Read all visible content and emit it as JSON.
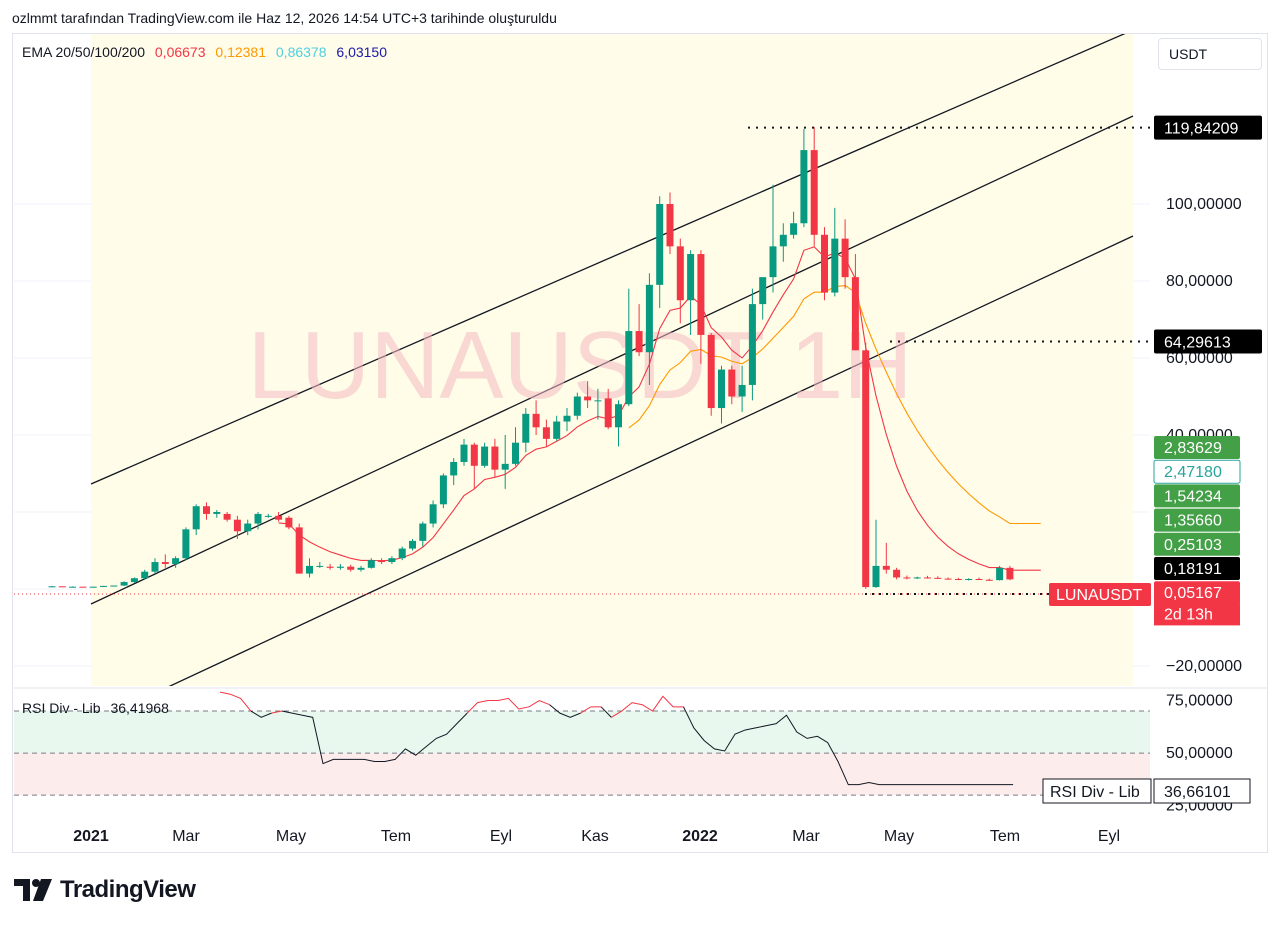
{
  "caption": "ozlmmt tarafından TradingView.com ile Haz 12, 2026 14:54 UTC+3 tarihinde oluşturuldu",
  "watermark": "LUNAUSDT 1H",
  "currency": "USDT",
  "ema_legend": {
    "label": "EMA 20/50/100/200",
    "values": [
      {
        "text": "0,06673",
        "color": "#f23645"
      },
      {
        "text": "0,12381",
        "color": "#ff9800"
      },
      {
        "text": "0,86378",
        "color": "#4dd0e1"
      },
      {
        "text": "6,03150",
        "color": "#1a1aa6"
      }
    ]
  },
  "rsi_legend": {
    "label": "RSI Div - Lib",
    "value": "36,41968"
  },
  "brand": "TradingView",
  "chart_data": {
    "type": "candlestick",
    "symbol": "LUNAUSDT",
    "price_axis": {
      "ticks": [
        {
          "value": 100,
          "label": "100,00000"
        },
        {
          "value": 80,
          "label": "80,00000"
        },
        {
          "value": 60,
          "label": "60,00000"
        },
        {
          "value": 40,
          "label": "40,00000"
        },
        {
          "value": -20,
          "label": "−20,00000"
        }
      ],
      "range": [
        -25,
        130
      ]
    },
    "price_labels": [
      {
        "value": 119.84209,
        "text": "119,84209",
        "bg": "#000000",
        "fg": "#ffffff"
      },
      {
        "value": 64.29613,
        "text": "64,29613",
        "bg": "#000000",
        "fg": "#ffffff"
      }
    ],
    "stacked_labels": [
      {
        "text": "2,83629",
        "bg": "#43a047",
        "fg": "#ffffff",
        "border": ""
      },
      {
        "text": "2,47180",
        "bg": "#ffffff",
        "fg": "#26a69a",
        "border": "#26a69a"
      },
      {
        "text": "1,54234",
        "bg": "#43a047",
        "fg": "#ffffff",
        "border": ""
      },
      {
        "text": "1,35660",
        "bg": "#43a047",
        "fg": "#ffffff",
        "border": ""
      },
      {
        "text": "0,25103",
        "bg": "#43a047",
        "fg": "#ffffff",
        "border": ""
      },
      {
        "text": "0,18191",
        "bg": "#000000",
        "fg": "#ffffff",
        "border": ""
      },
      {
        "text": "0,05167",
        "bg": "#f23645",
        "fg": "#ffffff",
        "border": ""
      }
    ],
    "countdown": "2d 13h",
    "symbol_tag": "LUNAUSDT",
    "time_axis": [
      {
        "label": "2021",
        "bold": true
      },
      {
        "label": "Mar",
        "bold": false
      },
      {
        "label": "May",
        "bold": false
      },
      {
        "label": "Tem",
        "bold": false
      },
      {
        "label": "Eyl",
        "bold": false
      },
      {
        "label": "Kas",
        "bold": false
      },
      {
        "label": "2022",
        "bold": true
      },
      {
        "label": "Mar",
        "bold": false
      },
      {
        "label": "May",
        "bold": false
      },
      {
        "label": "Tem",
        "bold": false
      },
      {
        "label": "Eyl",
        "bold": false
      }
    ],
    "candles": [
      [
        0.7,
        0.8,
        0.6,
        0.7
      ],
      [
        0.7,
        0.7,
        0.6,
        0.6
      ],
      [
        0.6,
        0.7,
        0.5,
        0.6
      ],
      [
        0.6,
        0.6,
        0.5,
        0.5
      ],
      [
        0.5,
        0.6,
        0.5,
        0.6
      ],
      [
        0.6,
        0.8,
        0.6,
        0.8
      ],
      [
        0.8,
        0.9,
        0.7,
        0.9
      ],
      [
        0.9,
        2.0,
        0.8,
        1.8
      ],
      [
        1.8,
        3.0,
        1.6,
        2.8
      ],
      [
        2.8,
        5.0,
        2.5,
        4.5
      ],
      [
        4.5,
        8.0,
        4.0,
        7.0
      ],
      [
        7.0,
        9.0,
        5.5,
        6.5
      ],
      [
        6.5,
        8.5,
        5.5,
        8.0
      ],
      [
        8.0,
        16.0,
        7.5,
        15.5
      ],
      [
        15.5,
        22.0,
        14.0,
        21.5
      ],
      [
        21.5,
        22.5,
        18.0,
        19.5
      ],
      [
        19.5,
        20.5,
        18.5,
        20.0
      ],
      [
        19.5,
        20.0,
        17.5,
        18.0
      ],
      [
        18.0,
        19.0,
        13.0,
        15.0
      ],
      [
        15.0,
        18.0,
        14.0,
        17.0
      ],
      [
        17.0,
        20.0,
        15.5,
        19.5
      ],
      [
        19.0,
        19.5,
        18.5,
        19.0
      ],
      [
        19.0,
        20.0,
        17.5,
        18.0
      ],
      [
        18.5,
        19.0,
        15.5,
        16.0
      ],
      [
        16.0,
        17.0,
        4.0,
        4.0
      ],
      [
        4.0,
        8.0,
        3.0,
        6.0
      ],
      [
        6.0,
        7.0,
        5.5,
        6.0
      ],
      [
        5.8,
        6.5,
        5.0,
        5.5
      ],
      [
        5.5,
        6.5,
        5.0,
        5.8
      ],
      [
        5.8,
        6.3,
        4.5,
        5.0
      ],
      [
        5.0,
        6.0,
        4.5,
        5.5
      ],
      [
        5.5,
        8.0,
        5.3,
        7.5
      ],
      [
        7.5,
        8.0,
        6.5,
        7.0
      ],
      [
        7.0,
        8.5,
        6.5,
        8.0
      ],
      [
        8.0,
        11.0,
        7.5,
        10.5
      ],
      [
        10.5,
        13.0,
        10.0,
        12.5
      ],
      [
        12.5,
        17.5,
        11.0,
        17.0
      ],
      [
        17.0,
        23.0,
        16.0,
        22.0
      ],
      [
        22.0,
        30.0,
        21.0,
        29.5
      ],
      [
        29.5,
        34.0,
        27.0,
        33.0
      ],
      [
        33.0,
        39.0,
        32.0,
        37.5
      ],
      [
        37.5,
        38.0,
        26.0,
        32.0
      ],
      [
        32.0,
        38.0,
        31.5,
        37.0
      ],
      [
        37.0,
        39.0,
        29.0,
        31.0
      ],
      [
        31.0,
        40.0,
        26.0,
        32.5
      ],
      [
        32.5,
        42.0,
        32.0,
        38.0
      ],
      [
        38.0,
        47.0,
        35.5,
        45.5
      ],
      [
        45.5,
        49.0,
        40.0,
        42.0
      ],
      [
        42.0,
        44.0,
        37.0,
        39.0
      ],
      [
        39.0,
        45.0,
        38.5,
        43.5
      ],
      [
        43.5,
        47.0,
        41.0,
        45.0
      ],
      [
        45.0,
        51.0,
        44.0,
        50.0
      ],
      [
        50.0,
        54.0,
        47.0,
        49.0
      ],
      [
        49.0,
        52.0,
        44.0,
        49.0
      ],
      [
        49.5,
        52.0,
        41.5,
        42.0
      ],
      [
        42.0,
        49.0,
        37.0,
        48.0
      ],
      [
        48.0,
        78.0,
        47.5,
        67.0
      ],
      [
        67.0,
        74.0,
        60.5,
        61.5
      ],
      [
        61.5,
        82.0,
        53.0,
        79.0
      ],
      [
        79.0,
        102.0,
        73.0,
        100.0
      ],
      [
        100.0,
        103.0,
        87.0,
        89.0
      ],
      [
        89.0,
        91.0,
        69.0,
        75.0
      ],
      [
        75.0,
        88.0,
        66.0,
        87.0
      ],
      [
        87.0,
        88.0,
        58.5,
        66.0
      ],
      [
        66.0,
        66.5,
        45.0,
        47.0
      ],
      [
        47.0,
        58.0,
        43.0,
        57.0
      ],
      [
        57.0,
        58.0,
        48.0,
        50.0
      ],
      [
        50.0,
        58.0,
        46.0,
        53.0
      ],
      [
        53.0,
        78.0,
        49.0,
        74.0
      ],
      [
        74.0,
        81.0,
        70.0,
        81.0
      ],
      [
        81.0,
        105.0,
        77.0,
        89.0
      ],
      [
        89.0,
        95.0,
        85.0,
        92.0
      ],
      [
        92.0,
        98.0,
        91.0,
        95.0
      ],
      [
        95.0,
        119.5,
        94.0,
        114.0
      ],
      [
        114.0,
        120.0,
        89.0,
        92.0
      ],
      [
        92.0,
        94.0,
        75.0,
        77.0
      ],
      [
        77.0,
        99.0,
        76.0,
        91.0
      ],
      [
        91.0,
        96.0,
        78.0,
        81.0
      ],
      [
        81.0,
        87.0,
        62.0,
        62.0
      ],
      [
        62.0,
        64.0,
        0.05,
        0.5
      ],
      [
        0.5,
        18.0,
        0.3,
        6.0
      ],
      [
        6.0,
        12.0,
        4.0,
        5.0
      ],
      [
        5.0,
        5.5,
        2.5,
        3.0
      ],
      [
        3.0,
        3.5,
        2.5,
        2.8
      ],
      [
        2.8,
        3.2,
        2.6,
        3.0
      ],
      [
        3.0,
        3.4,
        2.7,
        2.9
      ],
      [
        2.9,
        3.3,
        2.6,
        2.7
      ],
      [
        2.7,
        3.0,
        2.4,
        2.6
      ],
      [
        2.6,
        2.9,
        2.3,
        2.5
      ],
      [
        2.5,
        2.8,
        2.2,
        2.6
      ],
      [
        2.6,
        3.0,
        2.3,
        2.4
      ],
      [
        2.4,
        2.7,
        2.1,
        2.3
      ],
      [
        2.3,
        6.0,
        2.2,
        5.5
      ],
      [
        5.5,
        6.0,
        2.3,
        2.5
      ]
    ],
    "ema_series": [
      {
        "name": "EMA 20",
        "color": "#f23645"
      },
      {
        "name": "EMA 50",
        "color": "#ff9800"
      }
    ],
    "rsi": {
      "levels": [
        70,
        50,
        30
      ],
      "ticks": [
        {
          "value": 75,
          "label": "75,00000"
        },
        {
          "value": 50,
          "label": "50,00000"
        },
        {
          "value": 25,
          "label": "25,00000"
        }
      ],
      "range": [
        22,
        80
      ],
      "value_label": "36,66101",
      "tag": "RSI Div - Lib",
      "values": [
        79,
        78,
        76,
        70,
        67,
        69,
        70,
        69,
        68,
        67,
        45,
        47,
        47,
        47,
        47,
        46,
        46,
        47,
        52,
        49,
        53,
        57,
        59,
        64,
        69,
        74,
        75,
        75,
        76,
        71,
        72,
        75,
        73,
        69,
        67,
        69,
        72,
        72,
        67,
        70,
        74,
        73,
        70,
        77,
        72,
        72,
        62,
        56,
        52,
        51,
        59,
        61,
        62,
        63,
        64,
        68,
        60,
        57,
        58,
        55,
        46,
        35,
        35,
        36,
        35,
        35,
        35,
        35,
        35,
        35,
        35,
        35,
        35,
        35,
        35,
        35,
        35,
        35
      ]
    }
  }
}
